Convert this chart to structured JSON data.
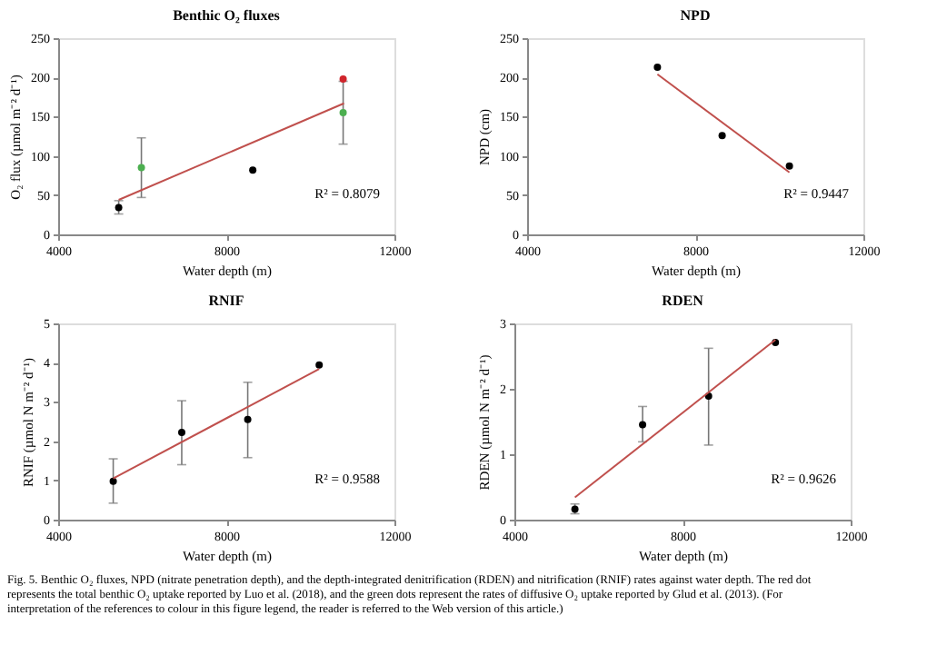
{
  "chart_data": [
    {
      "type": "scatter",
      "title": "Benthic O₂ fluxes",
      "xlabel": "Water depth (m)",
      "ylabel": "O₂ flux (µmol m⁻² d⁻¹)",
      "xlim": [
        4000,
        12000
      ],
      "xticks": [
        4000,
        8000,
        12000
      ],
      "ylim": [
        0,
        250
      ],
      "yticks": [
        0,
        50,
        100,
        150,
        200,
        250
      ],
      "grid": false,
      "marker": "circle",
      "series": [
        {
          "color": "#000000",
          "x": [
            5440,
            8630
          ],
          "values": [
            34,
            82
          ],
          "errors": [
            [
              26,
              43
            ],
            null
          ]
        },
        {
          "color": "#4caf50",
          "x": [
            5980,
            10780
          ],
          "values": [
            85,
            155
          ],
          "errors": [
            [
              47,
              123
            ],
            [
              115,
              195
            ]
          ]
        },
        {
          "color": "#d0242b",
          "x": [
            10780
          ],
          "values": [
            198
          ]
        },
        {
          "type": "line",
          "marker": "none",
          "line_style": "solid",
          "color": "#c0504d",
          "x": [
            5440,
            10800
          ],
          "values": [
            44,
            167
          ]
        }
      ],
      "annotations": [
        "R² = 0.8079"
      ]
    },
    {
      "type": "scatter",
      "title": "NPD",
      "xlabel": "Water depth (m)",
      "ylabel": "NPD (cm)",
      "xlim": [
        4000,
        12000
      ],
      "xticks": [
        4000,
        8000,
        12000
      ],
      "ylim": [
        0,
        250
      ],
      "yticks": [
        0,
        50,
        100,
        150,
        200,
        250
      ],
      "grid": false,
      "marker": "circle",
      "series": [
        {
          "color": "#000000",
          "x": [
            7100,
            8640,
            10240
          ],
          "values": [
            213,
            126,
            87
          ]
        },
        {
          "type": "line",
          "marker": "none",
          "line_style": "solid",
          "color": "#c0504d",
          "x": [
            7100,
            10240
          ],
          "values": [
            204,
            79
          ]
        }
      ],
      "annotations": [
        "R² = 0.9447"
      ]
    },
    {
      "type": "scatter",
      "title": "RNIF",
      "xlabel": "Water depth (m)",
      "ylabel": "RNIF (µmol N m⁻² d⁻¹)",
      "xlim": [
        4000,
        12000
      ],
      "xticks": [
        4000,
        8000,
        12000
      ],
      "ylim": [
        0,
        5
      ],
      "yticks": [
        0,
        1,
        2,
        3,
        4,
        5
      ],
      "grid": false,
      "marker": "circle",
      "series": [
        {
          "color": "#000000",
          "x": [
            5310,
            6940,
            8510,
            10210
          ],
          "values": [
            0.98,
            2.22,
            2.55,
            3.94
          ],
          "errors": [
            [
              0.42,
              1.55
            ],
            [
              1.4,
              3.03
            ],
            [
              1.58,
              3.5
            ],
            null
          ]
        },
        {
          "type": "line",
          "marker": "none",
          "line_style": "solid",
          "color": "#c0504d",
          "x": [
            5310,
            10210
          ],
          "values": [
            1.05,
            3.84
          ]
        }
      ],
      "annotations": [
        "R² = 0.9588"
      ]
    },
    {
      "type": "scatter",
      "title": "RDEN",
      "xlabel": "Water depth (m)",
      "ylabel": "RDEN (µmol N m⁻² d⁻¹)",
      "xlim": [
        4000,
        12000
      ],
      "xticks": [
        4000,
        8000,
        12000
      ],
      "ylim": [
        0,
        3
      ],
      "yticks": [
        0,
        1,
        2,
        3
      ],
      "grid": false,
      "marker": "circle",
      "series": [
        {
          "color": "#000000",
          "x": [
            5440,
            7050,
            8620,
            10210
          ],
          "values": [
            0.16,
            1.45,
            1.89,
            2.71
          ],
          "errors": [
            [
              0.09,
              0.24
            ],
            [
              1.19,
              1.73
            ],
            [
              1.14,
              2.62
            ],
            null
          ]
        },
        {
          "type": "line",
          "marker": "none",
          "line_style": "solid",
          "color": "#c0504d",
          "x": [
            5440,
            10210
          ],
          "values": [
            0.34,
            2.75
          ]
        }
      ],
      "annotations": [
        "R² = 0.9626",
        "Fig. 5. Benthic O₂ fluxes, NPD (nitrate penetration depth), and the depth-integrated denitrification (RDEN) and nitrification (RNIF) rates against water depth. The red dot represents the total benthic O₂ uptake reported by Luo et al. (2018), and the green dots represent the rates of diffusive O₂ uptake reported by Glud et al. (2013). (For interpretation of the references to colour in this figure legend, the reader is referred to the Web version of this article.)"
      ]
    }
  ]
}
